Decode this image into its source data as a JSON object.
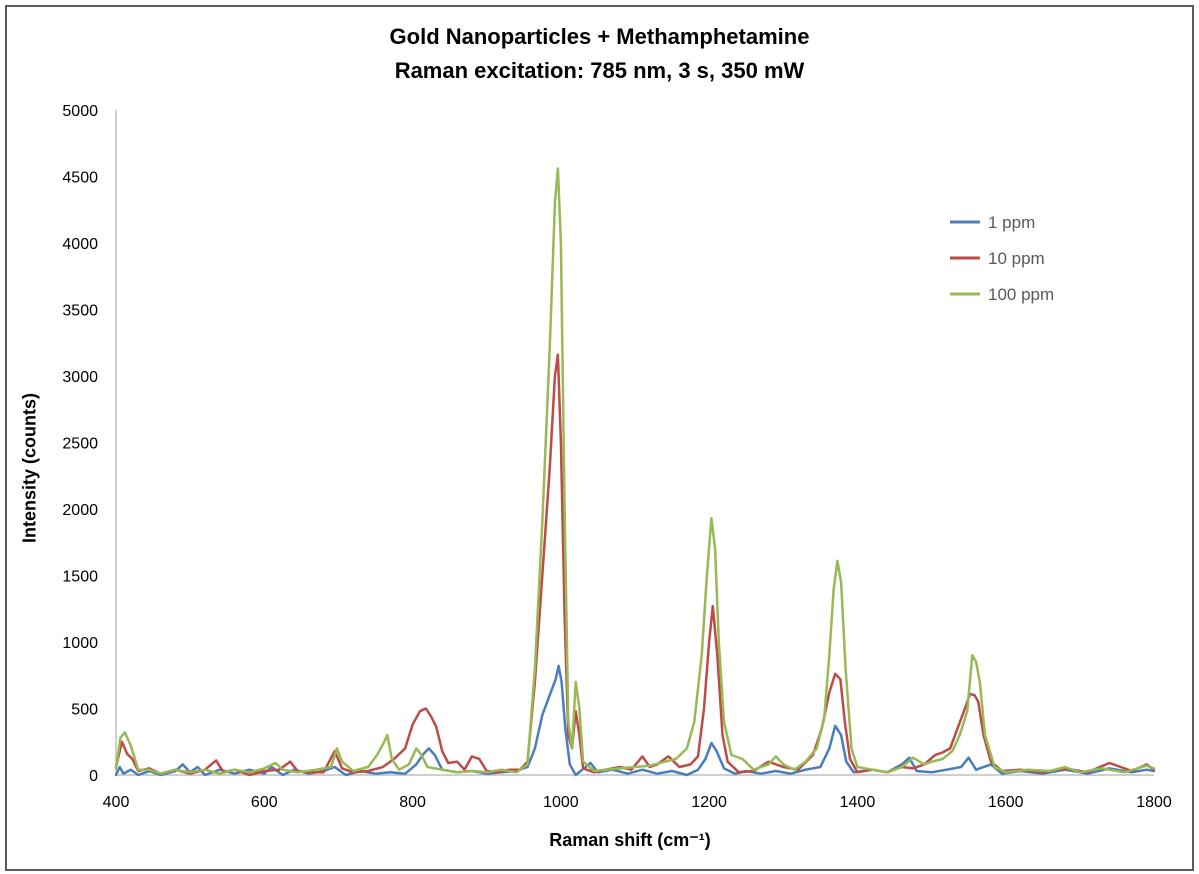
{
  "chart_data": {
    "type": "line",
    "title": "Gold Nanoparticles + Methamphetamine",
    "subtitle": "Raman excitation: 785 nm, 3 s, 350 mW",
    "xlabel": "Raman shift (cm⁻¹)",
    "ylabel": "Intensity (counts)",
    "xlim": [
      400,
      1800
    ],
    "ylim": [
      0,
      5000
    ],
    "xticks": [
      400,
      600,
      800,
      1000,
      1200,
      1400,
      1600,
      1800
    ],
    "yticks": [
      0,
      500,
      1000,
      1500,
      2000,
      2500,
      3000,
      3500,
      4000,
      4500,
      5000
    ],
    "grid": false,
    "legend_position": "top-right",
    "series": [
      {
        "name": "1 ppm",
        "color": "#4a7ebb",
        "points": [
          [
            400,
            0
          ],
          [
            405,
            60
          ],
          [
            410,
            10
          ],
          [
            420,
            40
          ],
          [
            430,
            0
          ],
          [
            445,
            30
          ],
          [
            460,
            0
          ],
          [
            480,
            30
          ],
          [
            490,
            80
          ],
          [
            500,
            20
          ],
          [
            510,
            60
          ],
          [
            520,
            0
          ],
          [
            540,
            40
          ],
          [
            560,
            10
          ],
          [
            580,
            40
          ],
          [
            600,
            10
          ],
          [
            610,
            60
          ],
          [
            625,
            0
          ],
          [
            640,
            40
          ],
          [
            660,
            10
          ],
          [
            680,
            30
          ],
          [
            695,
            60
          ],
          [
            710,
            0
          ],
          [
            730,
            30
          ],
          [
            750,
            10
          ],
          [
            770,
            20
          ],
          [
            790,
            10
          ],
          [
            805,
            80
          ],
          [
            815,
            160
          ],
          [
            822,
            200
          ],
          [
            830,
            150
          ],
          [
            840,
            40
          ],
          [
            860,
            20
          ],
          [
            880,
            30
          ],
          [
            900,
            10
          ],
          [
            920,
            20
          ],
          [
            940,
            30
          ],
          [
            955,
            60
          ],
          [
            965,
            200
          ],
          [
            975,
            450
          ],
          [
            985,
            600
          ],
          [
            993,
            720
          ],
          [
            997,
            820
          ],
          [
            1001,
            700
          ],
          [
            1006,
            350
          ],
          [
            1012,
            80
          ],
          [
            1020,
            0
          ],
          [
            1040,
            90
          ],
          [
            1050,
            20
          ],
          [
            1070,
            40
          ],
          [
            1090,
            10
          ],
          [
            1110,
            40
          ],
          [
            1130,
            10
          ],
          [
            1150,
            30
          ],
          [
            1170,
            0
          ],
          [
            1185,
            40
          ],
          [
            1195,
            120
          ],
          [
            1203,
            240
          ],
          [
            1210,
            180
          ],
          [
            1220,
            50
          ],
          [
            1235,
            10
          ],
          [
            1250,
            30
          ],
          [
            1270,
            10
          ],
          [
            1290,
            30
          ],
          [
            1310,
            10
          ],
          [
            1330,
            40
          ],
          [
            1350,
            60
          ],
          [
            1362,
            200
          ],
          [
            1370,
            370
          ],
          [
            1378,
            300
          ],
          [
            1385,
            100
          ],
          [
            1395,
            20
          ],
          [
            1420,
            40
          ],
          [
            1440,
            20
          ],
          [
            1460,
            80
          ],
          [
            1470,
            130
          ],
          [
            1480,
            30
          ],
          [
            1500,
            20
          ],
          [
            1520,
            40
          ],
          [
            1540,
            60
          ],
          [
            1550,
            130
          ],
          [
            1560,
            40
          ],
          [
            1580,
            80
          ],
          [
            1595,
            10
          ],
          [
            1620,
            30
          ],
          [
            1650,
            10
          ],
          [
            1680,
            40
          ],
          [
            1710,
            10
          ],
          [
            1740,
            50
          ],
          [
            1770,
            20
          ],
          [
            1790,
            40
          ],
          [
            1800,
            30
          ]
        ]
      },
      {
        "name": "10 ppm",
        "color": "#be4b48",
        "points": [
          [
            400,
            60
          ],
          [
            408,
            250
          ],
          [
            415,
            160
          ],
          [
            422,
            120
          ],
          [
            430,
            30
          ],
          [
            445,
            50
          ],
          [
            460,
            10
          ],
          [
            480,
            40
          ],
          [
            500,
            10
          ],
          [
            520,
            40
          ],
          [
            535,
            110
          ],
          [
            545,
            20
          ],
          [
            560,
            40
          ],
          [
            580,
            0
          ],
          [
            600,
            30
          ],
          [
            620,
            40
          ],
          [
            635,
            100
          ],
          [
            645,
            30
          ],
          [
            660,
            20
          ],
          [
            680,
            20
          ],
          [
            695,
            180
          ],
          [
            705,
            50
          ],
          [
            720,
            20
          ],
          [
            740,
            30
          ],
          [
            760,
            60
          ],
          [
            775,
            120
          ],
          [
            790,
            200
          ],
          [
            800,
            380
          ],
          [
            810,
            480
          ],
          [
            818,
            500
          ],
          [
            825,
            440
          ],
          [
            832,
            360
          ],
          [
            840,
            180
          ],
          [
            848,
            90
          ],
          [
            860,
            100
          ],
          [
            870,
            40
          ],
          [
            880,
            140
          ],
          [
            890,
            120
          ],
          [
            900,
            30
          ],
          [
            915,
            20
          ],
          [
            930,
            40
          ],
          [
            945,
            40
          ],
          [
            955,
            100
          ],
          [
            965,
            700
          ],
          [
            975,
            1500
          ],
          [
            985,
            2300
          ],
          [
            992,
            3000
          ],
          [
            996,
            3160
          ],
          [
            1000,
            2500
          ],
          [
            1005,
            1200
          ],
          [
            1010,
            300
          ],
          [
            1015,
            200
          ],
          [
            1020,
            480
          ],
          [
            1025,
            300
          ],
          [
            1030,
            50
          ],
          [
            1045,
            20
          ],
          [
            1060,
            40
          ],
          [
            1080,
            60
          ],
          [
            1095,
            40
          ],
          [
            1110,
            140
          ],
          [
            1120,
            60
          ],
          [
            1130,
            80
          ],
          [
            1145,
            140
          ],
          [
            1160,
            60
          ],
          [
            1175,
            80
          ],
          [
            1185,
            140
          ],
          [
            1193,
            500
          ],
          [
            1200,
            1000
          ],
          [
            1205,
            1270
          ],
          [
            1211,
            900
          ],
          [
            1218,
            300
          ],
          [
            1225,
            100
          ],
          [
            1240,
            20
          ],
          [
            1260,
            30
          ],
          [
            1280,
            100
          ],
          [
            1300,
            60
          ],
          [
            1320,
            40
          ],
          [
            1340,
            150
          ],
          [
            1352,
            350
          ],
          [
            1362,
            620
          ],
          [
            1370,
            760
          ],
          [
            1377,
            720
          ],
          [
            1383,
            400
          ],
          [
            1390,
            120
          ],
          [
            1400,
            20
          ],
          [
            1420,
            40
          ],
          [
            1440,
            20
          ],
          [
            1460,
            60
          ],
          [
            1475,
            50
          ],
          [
            1490,
            80
          ],
          [
            1505,
            150
          ],
          [
            1515,
            170
          ],
          [
            1525,
            200
          ],
          [
            1535,
            350
          ],
          [
            1545,
            500
          ],
          [
            1552,
            610
          ],
          [
            1558,
            600
          ],
          [
            1563,
            550
          ],
          [
            1570,
            300
          ],
          [
            1580,
            100
          ],
          [
            1595,
            30
          ],
          [
            1620,
            40
          ],
          [
            1650,
            20
          ],
          [
            1680,
            50
          ],
          [
            1710,
            20
          ],
          [
            1740,
            90
          ],
          [
            1770,
            30
          ],
          [
            1790,
            80
          ],
          [
            1800,
            40
          ]
        ]
      },
      {
        "name": "100 ppm",
        "color": "#98b954",
        "points": [
          [
            400,
            50
          ],
          [
            406,
            280
          ],
          [
            412,
            320
          ],
          [
            420,
            220
          ],
          [
            430,
            40
          ],
          [
            445,
            40
          ],
          [
            460,
            10
          ],
          [
            480,
            40
          ],
          [
            500,
            20
          ],
          [
            520,
            40
          ],
          [
            540,
            10
          ],
          [
            560,
            40
          ],
          [
            580,
            20
          ],
          [
            600,
            50
          ],
          [
            615,
            90
          ],
          [
            625,
            40
          ],
          [
            645,
            20
          ],
          [
            670,
            40
          ],
          [
            690,
            60
          ],
          [
            698,
            200
          ],
          [
            705,
            100
          ],
          [
            720,
            30
          ],
          [
            740,
            60
          ],
          [
            752,
            150
          ],
          [
            760,
            230
          ],
          [
            766,
            300
          ],
          [
            772,
            120
          ],
          [
            782,
            40
          ],
          [
            795,
            80
          ],
          [
            805,
            200
          ],
          [
            812,
            150
          ],
          [
            820,
            60
          ],
          [
            840,
            40
          ],
          [
            860,
            20
          ],
          [
            880,
            30
          ],
          [
            900,
            20
          ],
          [
            920,
            40
          ],
          [
            940,
            20
          ],
          [
            955,
            80
          ],
          [
            965,
            800
          ],
          [
            975,
            1900
          ],
          [
            985,
            3200
          ],
          [
            992,
            4300
          ],
          [
            996,
            4560
          ],
          [
            1000,
            4000
          ],
          [
            1005,
            2000
          ],
          [
            1010,
            400
          ],
          [
            1015,
            200
          ],
          [
            1020,
            700
          ],
          [
            1025,
            500
          ],
          [
            1030,
            100
          ],
          [
            1045,
            30
          ],
          [
            1060,
            40
          ],
          [
            1080,
            50
          ],
          [
            1100,
            60
          ],
          [
            1120,
            70
          ],
          [
            1140,
            100
          ],
          [
            1155,
            120
          ],
          [
            1170,
            200
          ],
          [
            1180,
            400
          ],
          [
            1190,
            900
          ],
          [
            1197,
            1500
          ],
          [
            1203,
            1930
          ],
          [
            1208,
            1700
          ],
          [
            1213,
            1000
          ],
          [
            1220,
            400
          ],
          [
            1230,
            150
          ],
          [
            1245,
            120
          ],
          [
            1260,
            40
          ],
          [
            1280,
            80
          ],
          [
            1290,
            140
          ],
          [
            1300,
            80
          ],
          [
            1315,
            40
          ],
          [
            1330,
            100
          ],
          [
            1345,
            200
          ],
          [
            1355,
            420
          ],
          [
            1362,
            900
          ],
          [
            1368,
            1400
          ],
          [
            1373,
            1610
          ],
          [
            1378,
            1450
          ],
          [
            1384,
            800
          ],
          [
            1392,
            200
          ],
          [
            1400,
            60
          ],
          [
            1420,
            40
          ],
          [
            1440,
            20
          ],
          [
            1460,
            60
          ],
          [
            1475,
            130
          ],
          [
            1490,
            80
          ],
          [
            1500,
            100
          ],
          [
            1515,
            120
          ],
          [
            1528,
            180
          ],
          [
            1538,
            300
          ],
          [
            1548,
            480
          ],
          [
            1555,
            900
          ],
          [
            1560,
            850
          ],
          [
            1565,
            700
          ],
          [
            1572,
            300
          ],
          [
            1585,
            60
          ],
          [
            1600,
            20
          ],
          [
            1630,
            40
          ],
          [
            1660,
            30
          ],
          [
            1680,
            60
          ],
          [
            1700,
            20
          ],
          [
            1730,
            50
          ],
          [
            1760,
            20
          ],
          [
            1790,
            70
          ],
          [
            1800,
            50
          ]
        ]
      }
    ]
  }
}
